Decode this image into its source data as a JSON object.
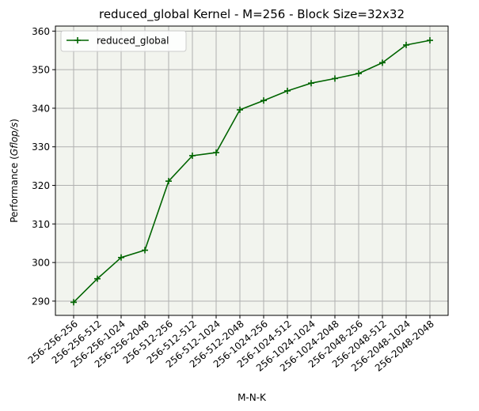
{
  "chart_data": {
    "type": "line",
    "title": "reduced_global Kernel - M=256 - Block Size=32x32",
    "xlabel": "M-N-K",
    "ylabel_prefix": "Performance (",
    "ylabel_unit": "Gflop/s",
    "ylabel_suffix": ")",
    "ylim": [
      286.3,
      361.3
    ],
    "yticks": [
      290,
      300,
      310,
      320,
      330,
      340,
      350,
      360
    ],
    "grid": true,
    "legend_position": "upper left",
    "background_color": "#f2f4ee",
    "categories": [
      "256-256-256",
      "256-256-512",
      "256-256-1024",
      "256-256-2048",
      "256-512-256",
      "256-512-512",
      "256-512-1024",
      "256-512-2048",
      "256-1024-256",
      "256-1024-512",
      "256-1024-1024",
      "256-1024-2048",
      "256-2048-256",
      "256-2048-512",
      "256-2048-1024",
      "256-2048-2048"
    ],
    "series": [
      {
        "name": "reduced_global",
        "color": "#006400",
        "marker": "plus",
        "values": [
          289.7,
          295.8,
          301.3,
          303.2,
          321.1,
          327.7,
          328.5,
          339.6,
          342.0,
          344.5,
          346.5,
          347.7,
          349.0,
          351.8,
          356.4,
          357.6
        ]
      }
    ]
  }
}
